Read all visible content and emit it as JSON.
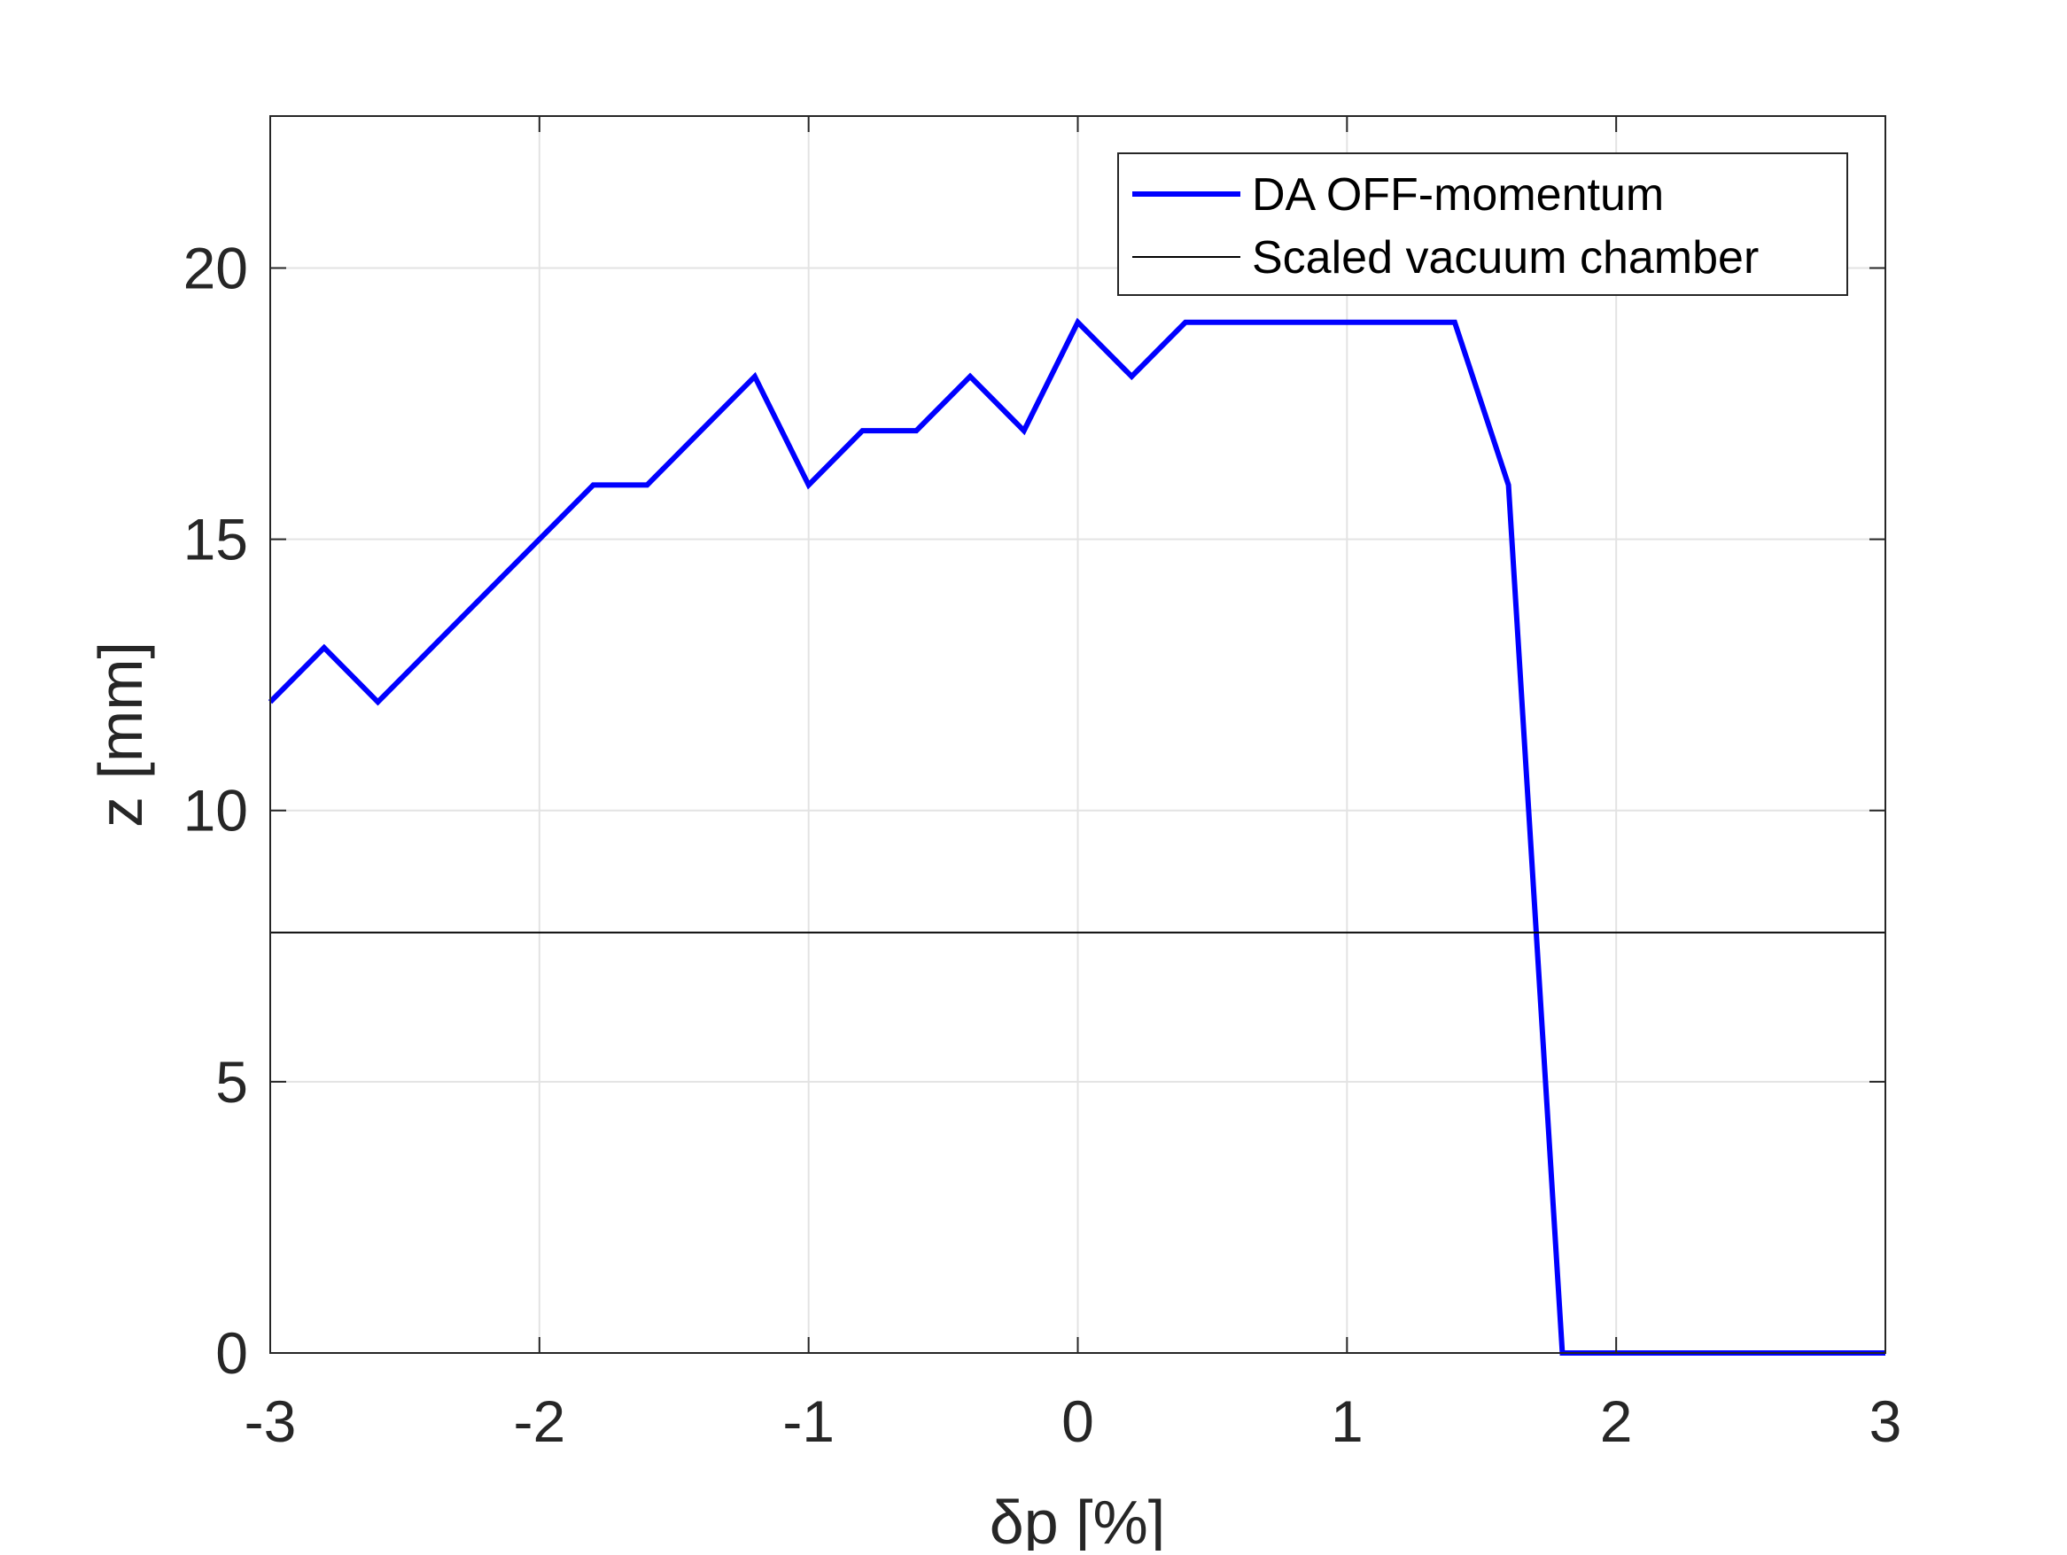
{
  "chart_data": {
    "type": "line",
    "xlabel": "δp [%]",
    "ylabel": "z [mm]",
    "xlim": [
      -3,
      3
    ],
    "ylim": [
      0,
      22.8
    ],
    "xticks": [
      -3,
      -2,
      -1,
      0,
      1,
      2,
      3
    ],
    "yticks": [
      0,
      5,
      10,
      15,
      20
    ],
    "grid": true,
    "legend_position": "top-right",
    "series": [
      {
        "name": "DA OFF-momentum",
        "color": "#0000ff",
        "x": [
          -3.0,
          -2.8,
          -2.6,
          -2.4,
          -2.2,
          -2.0,
          -1.8,
          -1.6,
          -1.4,
          -1.2,
          -1.0,
          -0.8,
          -0.6,
          -0.4,
          -0.2,
          0.0,
          0.2,
          0.4,
          0.6,
          0.8,
          1.0,
          1.2,
          1.4,
          1.6,
          1.8,
          2.0,
          2.2,
          2.4,
          2.6,
          2.8,
          3.0
        ],
        "y": [
          12,
          13,
          12,
          13,
          14,
          15,
          16,
          16,
          17,
          18,
          16,
          17,
          17,
          18,
          17,
          19,
          18,
          19,
          19,
          19,
          19,
          19,
          19,
          16,
          0,
          0,
          0,
          0,
          0,
          0,
          0
        ]
      },
      {
        "name": "Scaled vacuum chamber",
        "color": "#000000",
        "x": [
          -3,
          3
        ],
        "y": [
          7.75,
          7.75
        ]
      }
    ]
  }
}
